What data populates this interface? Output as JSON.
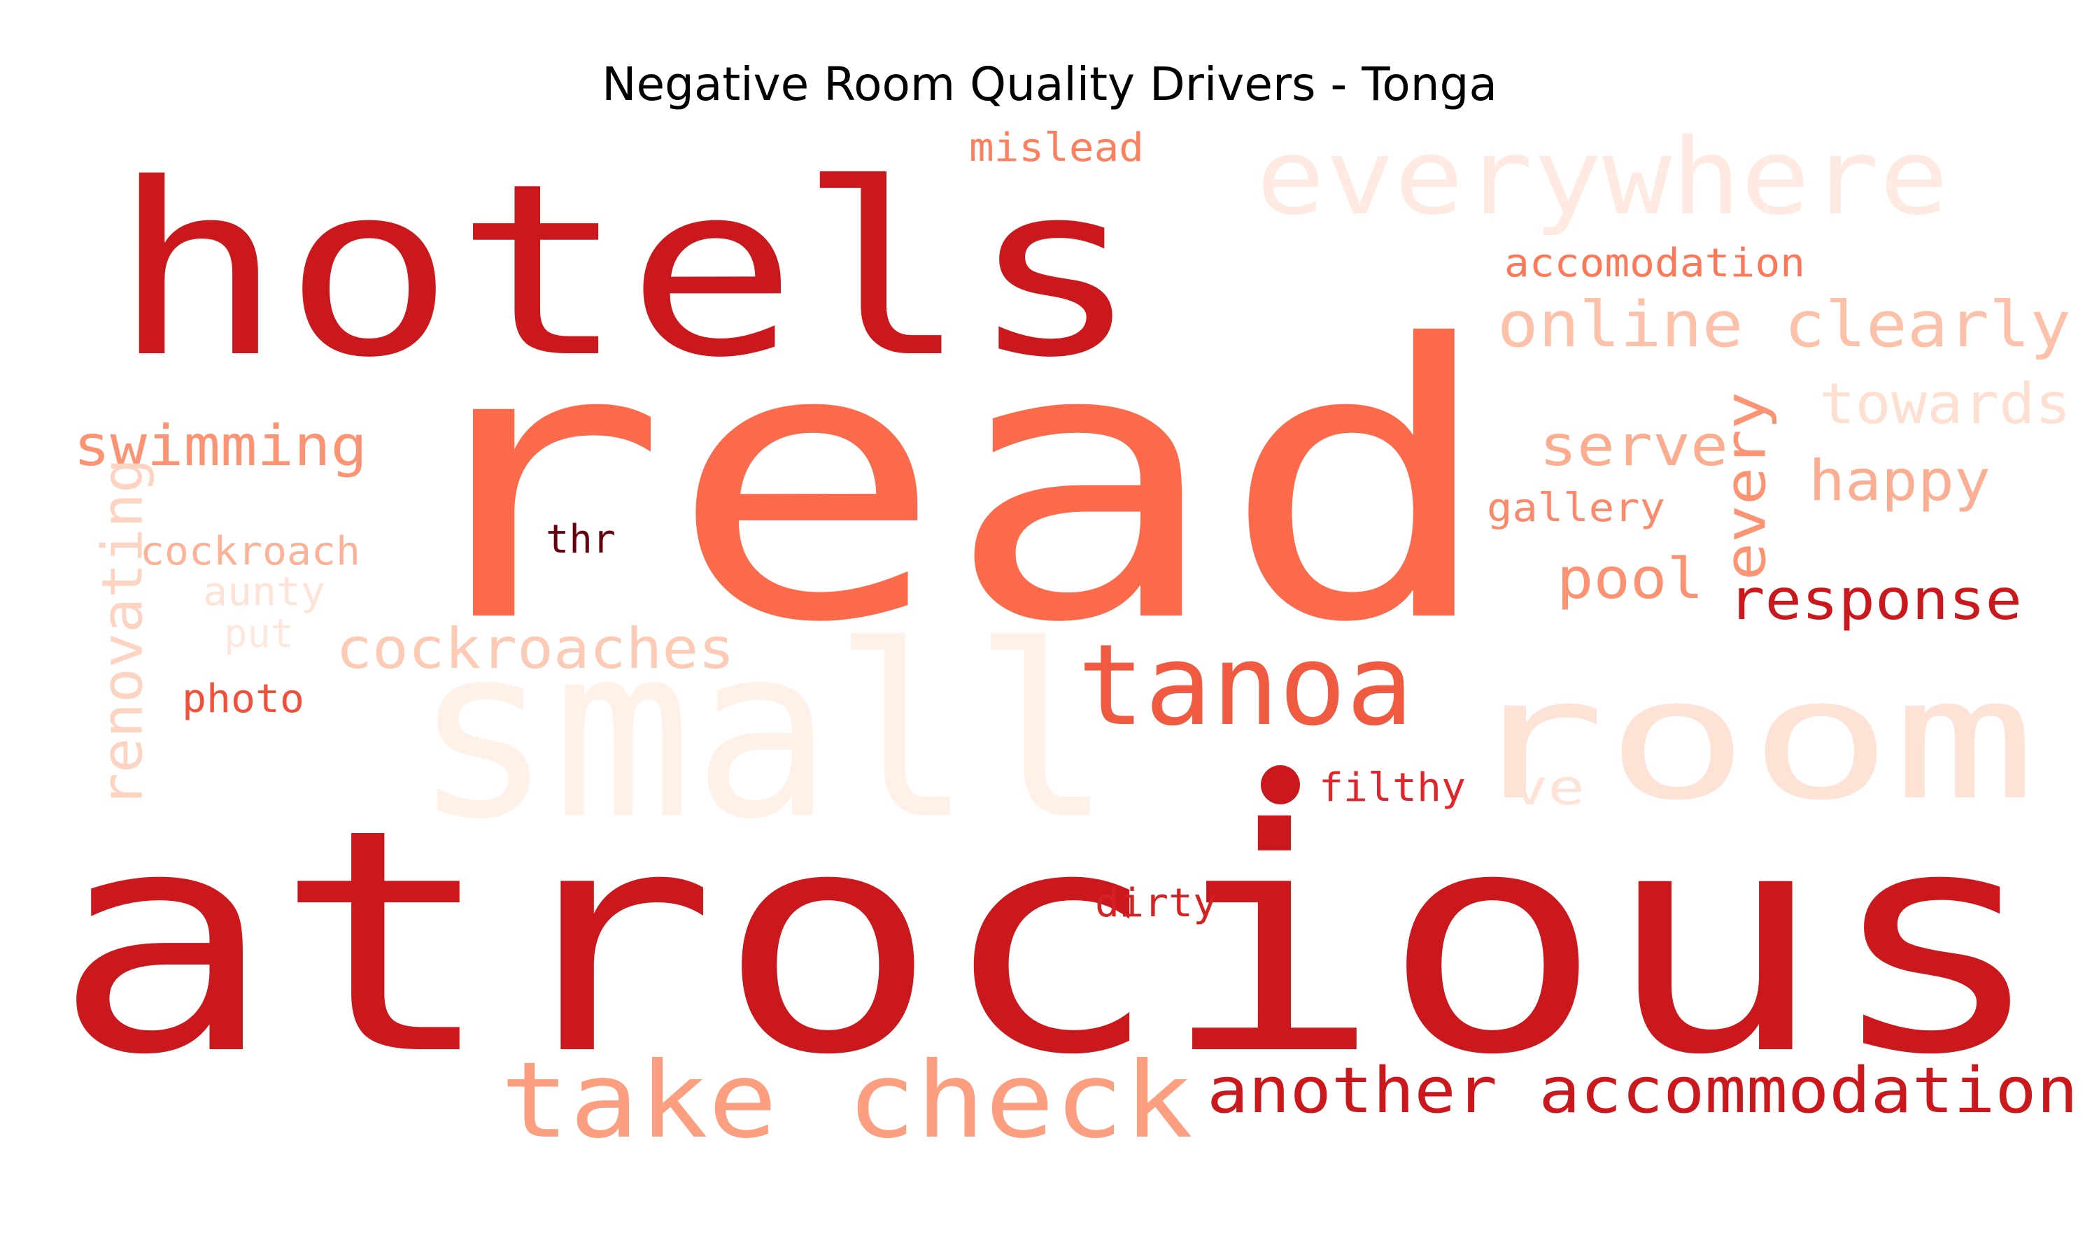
{
  "chart_data": {
    "type": "wordcloud",
    "title": "Negative Room Quality Drivers - Tonga",
    "colormap": "Reds",
    "words": [
      {
        "text": "read",
        "weight": 1.0,
        "color": "#fb6a4a"
      },
      {
        "text": "atrocious",
        "weight": 0.95,
        "color": "#cb181d"
      },
      {
        "text": "hotels",
        "weight": 0.68,
        "color": "#cb181d"
      },
      {
        "text": "small",
        "weight": 0.56,
        "color": "#fff0e8"
      },
      {
        "text": "room",
        "weight": 0.56,
        "color": "#fee2d5"
      },
      {
        "text": "everywhere",
        "weight": 0.28,
        "color": "#feeae0"
      },
      {
        "text": "tanoa",
        "weight": 0.3,
        "color": "#ef5a41"
      },
      {
        "text": "take check",
        "weight": 0.28,
        "color": "#fc9e80"
      },
      {
        "text": "another accommodation",
        "weight": 0.2,
        "color": "#cb181d"
      },
      {
        "text": "online clearly",
        "weight": 0.18,
        "color": "#fcc1a8"
      },
      {
        "text": "swimming",
        "weight": 0.16,
        "color": "#fc9474"
      },
      {
        "text": "towards",
        "weight": 0.16,
        "color": "#fee0d2"
      },
      {
        "text": "happy",
        "weight": 0.16,
        "color": "#fcae92"
      },
      {
        "text": "serve",
        "weight": 0.16,
        "color": "#fcac8f"
      },
      {
        "text": "renovating",
        "weight": 0.16,
        "color": "#fdd4c2"
      },
      {
        "text": "every",
        "weight": 0.15,
        "color": "#fc9474"
      },
      {
        "text": "response",
        "weight": 0.15,
        "color": "#cb181d"
      },
      {
        "text": "pool",
        "weight": 0.15,
        "color": "#fc9272"
      },
      {
        "text": "cockroaches",
        "weight": 0.15,
        "color": "#fdcab5"
      },
      {
        "text": "accomodation",
        "weight": 0.11,
        "color": "#fb7858"
      },
      {
        "text": "mislead",
        "weight": 0.11,
        "color": "#fb8060"
      },
      {
        "text": "gallery",
        "weight": 0.11,
        "color": "#fb8a6a"
      },
      {
        "text": "cockroach",
        "weight": 0.11,
        "color": "#fcb297"
      },
      {
        "text": "aunty",
        "weight": 0.11,
        "color": "#fee3d6"
      },
      {
        "text": "put",
        "weight": 0.1,
        "color": "#fee8dd"
      },
      {
        "text": "photo",
        "weight": 0.1,
        "color": "#f44f39"
      },
      {
        "text": "thr",
        "weight": 0.1,
        "color": "#67000d"
      },
      {
        "text": "filthy",
        "weight": 0.11,
        "color": "#e0262a"
      },
      {
        "text": "ve",
        "weight": 0.13,
        "color": "#fee3d6"
      },
      {
        "text": "dirty",
        "weight": 0.11,
        "color": "#d42121"
      },
      {
        "text": "●",
        "weight": 0.12,
        "color": "#cb181d"
      }
    ]
  }
}
